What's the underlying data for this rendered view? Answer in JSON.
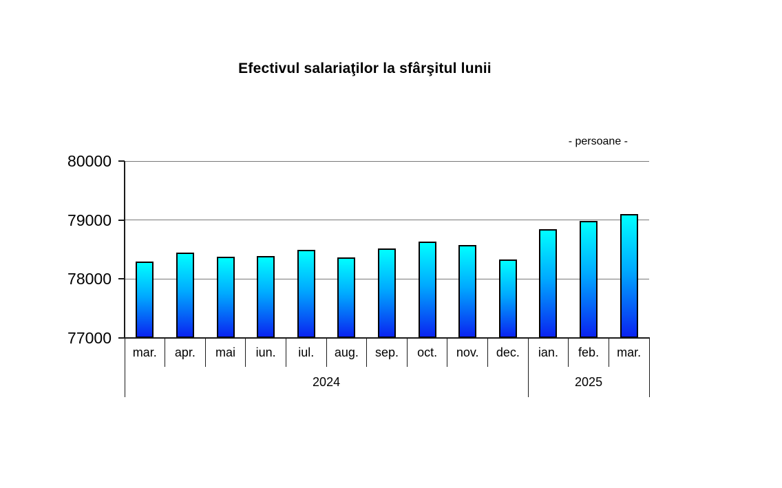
{
  "title": "Efectivul salariaţilor la sfârşitul lunii",
  "unit_label": "- persoane -",
  "chart_data": {
    "type": "bar",
    "title": "Efectivul salariaţilor la sfârşitul lunii",
    "unit_label": "- persoane -",
    "categories": [
      "mar.",
      "apr.",
      "mai",
      "iun.",
      "iul.",
      "aug.",
      "sep.",
      "oct.",
      "nov.",
      "dec.",
      "ian.",
      "feb.",
      "mar."
    ],
    "values": [
      78300,
      78450,
      78380,
      78390,
      78490,
      78370,
      78520,
      78630,
      78580,
      78330,
      78840,
      78980,
      79100
    ],
    "year_groups": [
      {
        "label": "2024",
        "span": 10
      },
      {
        "label": "2025",
        "span": 3
      }
    ],
    "ylim": [
      77000,
      80000
    ],
    "yticks": [
      "77000",
      "78000",
      "79000",
      "80000"
    ],
    "xlabel": "",
    "ylabel": "",
    "grid": "horizontal",
    "legend": "none",
    "colors": {
      "bar_gradient_top": "#00FFFF",
      "bar_gradient_bottom": "#0A23F0",
      "bar_border": "#000000",
      "gridline": "#777777",
      "axis": "#1A1A1A",
      "text": "#000000",
      "background": "#FFFFFF"
    }
  }
}
